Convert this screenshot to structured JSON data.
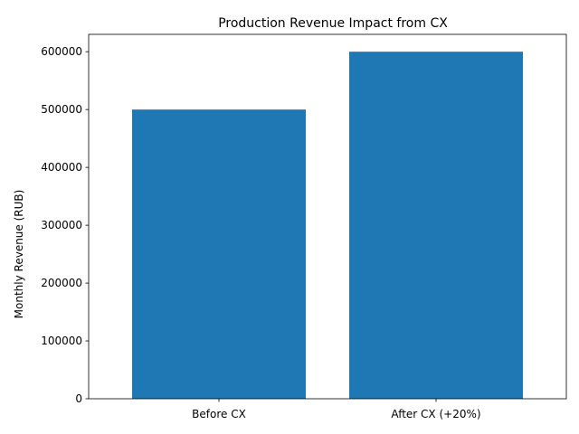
{
  "chart_data": {
    "type": "bar",
    "title": "Production Revenue Impact from CX",
    "xlabel": "",
    "ylabel": "Monthly Revenue (RUB)",
    "categories": [
      "Before CX",
      "After CX (+20%)"
    ],
    "values": [
      500000,
      600000
    ],
    "ylim": [
      0,
      630000
    ],
    "yticks": [
      0,
      100000,
      200000,
      300000,
      400000,
      500000,
      600000
    ],
    "ytick_labels": [
      "0",
      "100000",
      "200000",
      "300000",
      "400000",
      "500000",
      "600000"
    ],
    "bar_color": "#1f77b4",
    "grid": false,
    "legend": "none"
  }
}
